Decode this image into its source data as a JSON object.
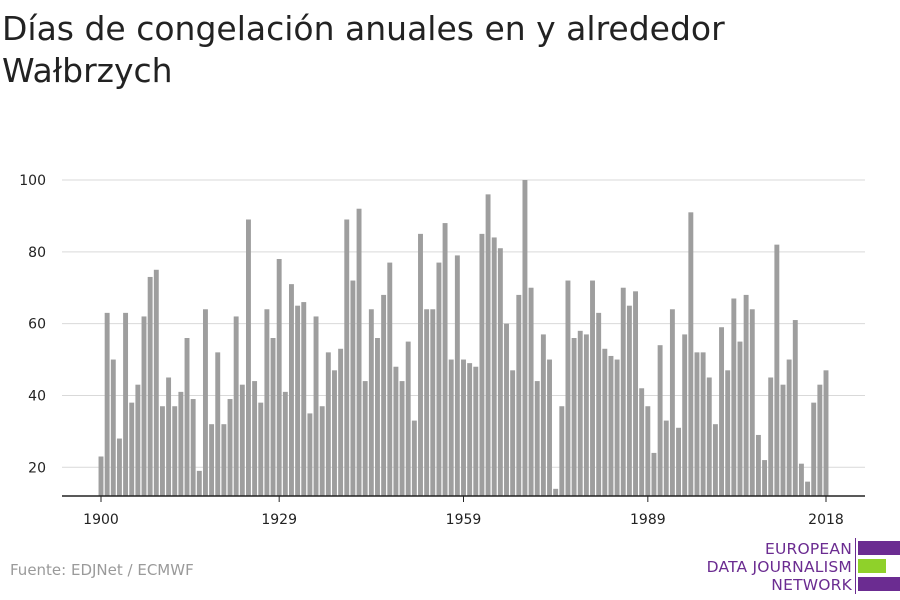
{
  "title": "Días de congelación anuales en y alrededor Wałbrzych",
  "source": "Fuente: EDJNet / ECMWF",
  "logo": {
    "lines": [
      "EUROPEAN",
      "DATA JOURNALISM",
      "NETWORK"
    ],
    "purple": "#6b2c91",
    "green": "#8fd12a",
    "icon": "edjnet-logo-bars"
  },
  "colors": {
    "bar": "#9e9e9e",
    "grid": "#d9d9d9",
    "axis": "#222222"
  },
  "chart_data": {
    "type": "bar",
    "title": "Días de congelación anuales en y alrededor Wałbrzych",
    "xlabel": "",
    "ylabel": "",
    "ylim": [
      12,
      100
    ],
    "yticks": [
      20,
      40,
      60,
      80,
      100
    ],
    "xticks": [
      1900,
      1929,
      1959,
      1989,
      2018
    ],
    "grid": true,
    "legend": "none",
    "x": [
      1900,
      1901,
      1902,
      1903,
      1904,
      1905,
      1906,
      1907,
      1908,
      1909,
      1910,
      1911,
      1912,
      1913,
      1914,
      1915,
      1916,
      1917,
      1918,
      1919,
      1920,
      1921,
      1922,
      1923,
      1924,
      1925,
      1926,
      1927,
      1928,
      1929,
      1930,
      1931,
      1932,
      1933,
      1934,
      1935,
      1936,
      1937,
      1938,
      1939,
      1940,
      1941,
      1942,
      1943,
      1944,
      1945,
      1946,
      1947,
      1948,
      1949,
      1950,
      1951,
      1952,
      1953,
      1954,
      1955,
      1956,
      1957,
      1958,
      1959,
      1960,
      1961,
      1962,
      1963,
      1964,
      1965,
      1966,
      1967,
      1968,
      1969,
      1970,
      1971,
      1972,
      1973,
      1974,
      1975,
      1976,
      1977,
      1978,
      1979,
      1980,
      1981,
      1982,
      1983,
      1984,
      1985,
      1986,
      1987,
      1988,
      1989,
      1990,
      1991,
      1992,
      1993,
      1994,
      1995,
      1996,
      1997,
      1998,
      1999,
      2000,
      2001,
      2002,
      2003,
      2004,
      2005,
      2006,
      2007,
      2008,
      2009,
      2010,
      2011,
      2012,
      2013,
      2014,
      2015,
      2016,
      2017,
      2018
    ],
    "values": [
      23,
      63,
      50,
      28,
      63,
      38,
      43,
      62,
      73,
      75,
      37,
      45,
      37,
      41,
      56,
      39,
      19,
      64,
      32,
      52,
      32,
      39,
      62,
      43,
      89,
      44,
      38,
      64,
      56,
      78,
      41,
      71,
      65,
      66,
      35,
      62,
      37,
      52,
      47,
      53,
      89,
      72,
      92,
      44,
      64,
      56,
      68,
      77,
      48,
      44,
      55,
      33,
      85,
      64,
      64,
      77,
      88,
      50,
      79,
      50,
      49,
      48,
      85,
      96,
      84,
      81,
      60,
      47,
      68,
      100,
      70,
      44,
      57,
      50,
      14,
      37,
      72,
      56,
      58,
      57,
      72,
      63,
      53,
      51,
      50,
      70,
      65,
      69,
      42,
      37,
      24,
      54,
      33,
      64,
      31,
      57,
      91,
      52,
      52,
      45,
      32,
      59,
      47,
      67,
      55,
      68,
      64,
      29,
      22,
      45,
      82,
      43,
      50,
      61,
      21,
      16,
      38,
      43,
      47
    ]
  }
}
